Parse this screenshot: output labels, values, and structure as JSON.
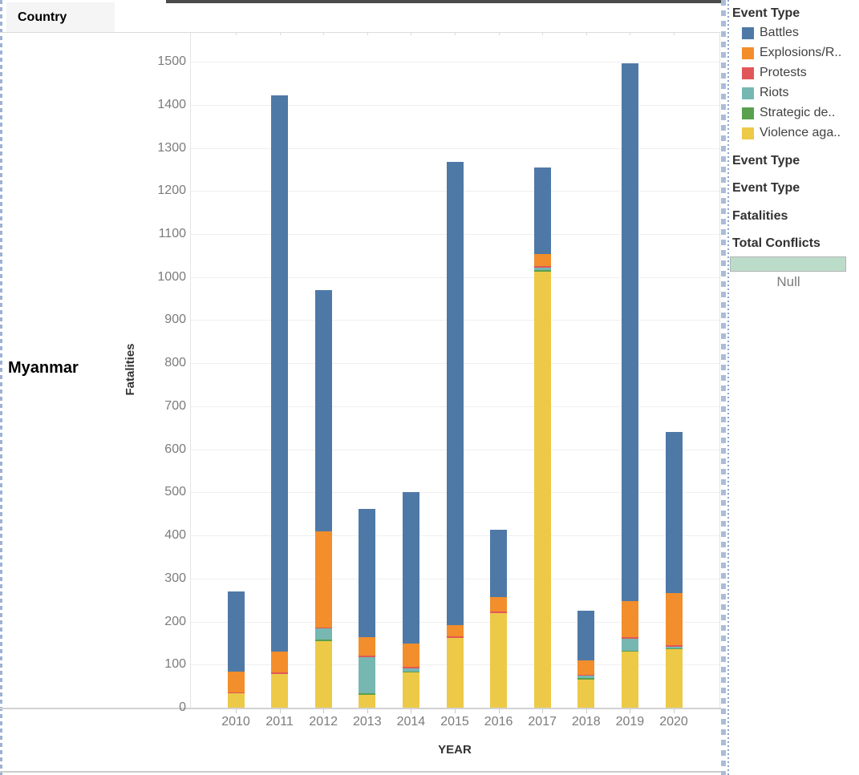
{
  "window": {
    "country_header": "Country",
    "row_label": "Myanmar"
  },
  "legend": {
    "title": "Event Type",
    "items": [
      {
        "label": "Battles",
        "color": "#4e79a7"
      },
      {
        "label": "Explosions/R..",
        "color": "#f28e2b"
      },
      {
        "label": "Protests",
        "color": "#e15759"
      },
      {
        "label": "Riots",
        "color": "#76b7b2"
      },
      {
        "label": "Strategic de..",
        "color": "#59a14f"
      },
      {
        "label": "Violence aga..",
        "color": "#edc948"
      }
    ]
  },
  "side_panel": {
    "headings": [
      "Event Type",
      "Event Type",
      "Fatalities",
      "Total Conflicts"
    ],
    "range_swatch_color": "#bcdcca",
    "range_label": "Null"
  },
  "chart_data": {
    "type": "bar",
    "stacked": true,
    "title": "",
    "xlabel": "YEAR",
    "ylabel": "Fatalities",
    "ylim": [
      0,
      1500
    ],
    "ytick_step": 100,
    "grid": true,
    "legend_position": "right",
    "categories": [
      "2010",
      "2011",
      "2012",
      "2013",
      "2014",
      "2015",
      "2016",
      "2017",
      "2018",
      "2019",
      "2020"
    ],
    "series": [
      {
        "name": "Battles",
        "color": "#4e79a7",
        "values": [
          186,
          1290,
          561,
          297,
          353,
          1076,
          156,
          200,
          117,
          1249,
          375
        ]
      },
      {
        "name": "Explosions/R..",
        "color": "#f28e2b",
        "values": [
          48,
          50,
          222,
          43,
          53,
          26,
          33,
          28,
          32,
          83,
          120
        ]
      },
      {
        "name": "Protests",
        "color": "#e15759",
        "values": [
          3,
          3,
          3,
          3,
          3,
          3,
          4,
          4,
          3,
          4,
          4
        ]
      },
      {
        "name": "Riots",
        "color": "#76b7b2",
        "values": [
          0,
          0,
          26,
          85,
          8,
          0,
          0,
          5,
          6,
          27,
          4
        ]
      },
      {
        "name": "Strategic de..",
        "color": "#59a14f",
        "values": [
          0,
          0,
          3,
          3,
          2,
          0,
          0,
          4,
          3,
          2,
          3
        ]
      },
      {
        "name": "Violence aga..",
        "color": "#edc948",
        "values": [
          33,
          78,
          155,
          30,
          82,
          162,
          220,
          1013,
          65,
          131,
          135
        ]
      }
    ],
    "stack_order_bottom_to_top": [
      "Violence aga..",
      "Strategic de..",
      "Riots",
      "Protests",
      "Explosions/R..",
      "Battles"
    ],
    "totals_by_year": [
      270,
      1421,
      970,
      461,
      501,
      1267,
      413,
      1254,
      226,
      1496,
      641
    ]
  }
}
